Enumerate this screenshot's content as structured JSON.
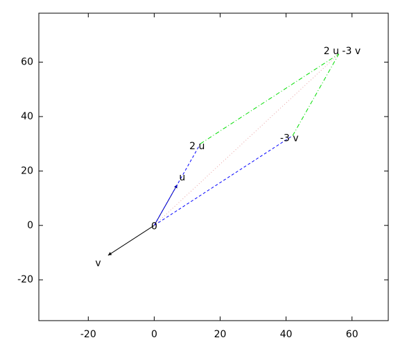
{
  "chart_data": {
    "type": "vector",
    "xlim": [
      -35,
      71
    ],
    "ylim": [
      -35,
      78
    ],
    "xticks": [
      -20,
      0,
      20,
      40,
      60
    ],
    "yticks": [
      -20,
      0,
      20,
      40,
      60
    ],
    "series": [
      {
        "color": "#000080",
        "style": "solid",
        "arrow": true,
        "x": [
          0,
          7
        ],
        "y": [
          0,
          15
        ]
      },
      {
        "color": "#000000",
        "style": "solid",
        "arrow": true,
        "x": [
          0,
          -14
        ],
        "y": [
          0,
          -11
        ]
      },
      {
        "color": "#0000ff",
        "style": "dashed",
        "arrow": false,
        "x": [
          0,
          14
        ],
        "y": [
          0,
          30
        ]
      },
      {
        "color": "#0000ff",
        "style": "dashed",
        "arrow": false,
        "x": [
          0,
          42
        ],
        "y": [
          0,
          33
        ]
      },
      {
        "color": "#00dd00",
        "style": "dashdot",
        "arrow": false,
        "x": [
          14,
          56
        ],
        "y": [
          30,
          63
        ]
      },
      {
        "color": "#00dd00",
        "style": "dashdot",
        "arrow": false,
        "x": [
          42,
          56
        ],
        "y": [
          33,
          63
        ]
      },
      {
        "color": "#e8a0a0",
        "style": "dotted",
        "arrow": false,
        "x": [
          0,
          56
        ],
        "y": [
          0,
          63
        ]
      }
    ],
    "labels": [
      {
        "text": "0",
        "x": 0,
        "y": -0.5
      },
      {
        "text": "u",
        "x": 8.5,
        "y": 17.5
      },
      {
        "text": "2 u",
        "x": 13,
        "y": 29
      },
      {
        "text": "v",
        "x": -17,
        "y": -14
      },
      {
        "text": "-3 v",
        "x": 41,
        "y": 32
      },
      {
        "text": "2 u -3 v",
        "x": 57,
        "y": 64
      }
    ]
  }
}
